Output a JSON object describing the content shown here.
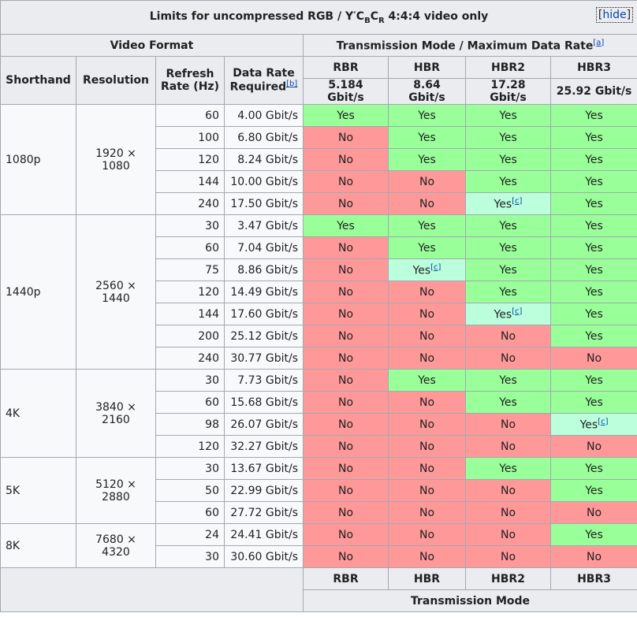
{
  "caption": {
    "prefix": "Limits for uncompressed RGB / Y′C",
    "sub_b": "B",
    "mid": "C",
    "sub_r": "R",
    "suffix": " 4:4:4 video only",
    "hide_label": "hide",
    "hide_open": "[",
    "hide_close": "]"
  },
  "headers": {
    "video_format": "Video Format",
    "transmission": "Transmission Mode / Maximum Data Rate",
    "transmission_ref": "[a]",
    "shorthand": "Shorthand",
    "resolution": "Resolution",
    "refresh": "Refresh Rate (Hz)",
    "data_rate": "Data Rate Required",
    "data_rate_ref": "[b]",
    "modes": [
      "RBR",
      "HBR",
      "HBR2",
      "HBR3"
    ],
    "rates": [
      "5.184 Gbit/s",
      "8.64 Gbit/s",
      "17.28 Gbit/s",
      "25.92 Gbit/s"
    ],
    "footer_mode": "Transmission Mode"
  },
  "note_ref": "[c]",
  "groups": [
    {
      "shorthand": "1080p",
      "resolution": "1920 × 1080",
      "rows": [
        {
          "hz": "60",
          "rate": "4.00 Gbit/s",
          "cells": [
            "yes",
            "yes",
            "yes",
            "yes"
          ]
        },
        {
          "hz": "100",
          "rate": "6.80 Gbit/s",
          "cells": [
            "no",
            "yes",
            "yes",
            "yes"
          ]
        },
        {
          "hz": "120",
          "rate": "8.24 Gbit/s",
          "cells": [
            "no",
            "yes",
            "yes",
            "yes"
          ]
        },
        {
          "hz": "144",
          "rate": "10.00 Gbit/s",
          "cells": [
            "no",
            "no",
            "yes",
            "yes"
          ]
        },
        {
          "hz": "240",
          "rate": "17.50 Gbit/s",
          "cells": [
            "no",
            "no",
            "partial",
            "yes"
          ]
        }
      ]
    },
    {
      "shorthand": "1440p",
      "resolution": "2560 × 1440",
      "rows": [
        {
          "hz": "30",
          "rate": "3.47 Gbit/s",
          "cells": [
            "yes",
            "yes",
            "yes",
            "yes"
          ]
        },
        {
          "hz": "60",
          "rate": "7.04 Gbit/s",
          "cells": [
            "no",
            "yes",
            "yes",
            "yes"
          ]
        },
        {
          "hz": "75",
          "rate": "8.86 Gbit/s",
          "cells": [
            "no",
            "partial",
            "yes",
            "yes"
          ]
        },
        {
          "hz": "120",
          "rate": "14.49 Gbit/s",
          "cells": [
            "no",
            "no",
            "yes",
            "yes"
          ]
        },
        {
          "hz": "144",
          "rate": "17.60 Gbit/s",
          "cells": [
            "no",
            "no",
            "partial",
            "yes"
          ]
        },
        {
          "hz": "200",
          "rate": "25.12 Gbit/s",
          "cells": [
            "no",
            "no",
            "no",
            "yes"
          ]
        },
        {
          "hz": "240",
          "rate": "30.77 Gbit/s",
          "cells": [
            "no",
            "no",
            "no",
            "no"
          ]
        }
      ]
    },
    {
      "shorthand": "4K",
      "resolution": "3840 × 2160",
      "rows": [
        {
          "hz": "30",
          "rate": "7.73 Gbit/s",
          "cells": [
            "no",
            "yes",
            "yes",
            "yes"
          ]
        },
        {
          "hz": "60",
          "rate": "15.68 Gbit/s",
          "cells": [
            "no",
            "no",
            "yes",
            "yes"
          ]
        },
        {
          "hz": "98",
          "rate": "26.07 Gbit/s",
          "cells": [
            "no",
            "no",
            "no",
            "partial"
          ]
        },
        {
          "hz": "120",
          "rate": "32.27 Gbit/s",
          "cells": [
            "no",
            "no",
            "no",
            "no"
          ]
        }
      ]
    },
    {
      "shorthand": "5K",
      "resolution": "5120 × 2880",
      "rows": [
        {
          "hz": "30",
          "rate": "13.67 Gbit/s",
          "cells": [
            "no",
            "no",
            "yes",
            "yes"
          ]
        },
        {
          "hz": "50",
          "rate": "22.99 Gbit/s",
          "cells": [
            "no",
            "no",
            "no",
            "yes"
          ]
        },
        {
          "hz": "60",
          "rate": "27.72 Gbit/s",
          "cells": [
            "no",
            "no",
            "no",
            "no"
          ]
        }
      ]
    },
    {
      "shorthand": "8K",
      "resolution": "7680 × 4320",
      "rows": [
        {
          "hz": "24",
          "rate": "24.41 Gbit/s",
          "cells": [
            "no",
            "no",
            "no",
            "yes"
          ]
        },
        {
          "hz": "30",
          "rate": "30.60 Gbit/s",
          "cells": [
            "no",
            "no",
            "no",
            "no"
          ]
        }
      ]
    }
  ],
  "labels": {
    "yes": "Yes",
    "no": "No",
    "partial": "Yes"
  },
  "colors": {
    "yes": "#99ff99",
    "no": "#ff9999",
    "partial": "#bbffdd",
    "header": "#eaecf0",
    "link": "#0645ad"
  }
}
